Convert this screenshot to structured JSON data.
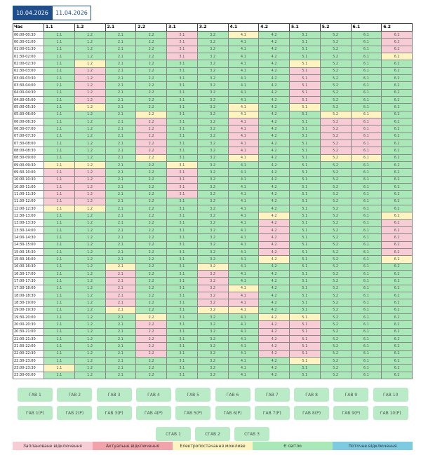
{
  "tabs": [
    "10.04.2026",
    "11.04.2026"
  ],
  "table": {
    "hour_header": "Час",
    "columns": [
      "1.1",
      "1.2",
      "2.1",
      "2.2",
      "3.1",
      "3.2",
      "4.1",
      "4.2",
      "5.1",
      "5.2",
      "6.1",
      "6.2"
    ],
    "rows": [
      "00:00-00:30",
      "00:30-01:00",
      "01:00-01:30",
      "01:30-02:00",
      "02:00-02:30",
      "02:30-03:00",
      "03:00-03:30",
      "03:30-04:00",
      "04:00-04:30",
      "04:30-05:00",
      "05:00-05:30",
      "05:30-06:00",
      "06:00-06:30",
      "06:30-07:00",
      "07:00-07:30",
      "07:30-08:00",
      "08:00-08:30",
      "08:30-09:00",
      "09:00-09:30",
      "09:30-10:00",
      "10:00-10:30",
      "10:30-11:00",
      "11:00-11:30",
      "11:30-12:00",
      "12:00-12:30",
      "12:30-13:00",
      "13:00-13:30",
      "13:30-14:00",
      "14:00-14:30",
      "14:30-15:00",
      "15:00-15:30",
      "15:30-16:00",
      "16:00-16:30",
      "16:30-17:00",
      "17:00-17:30",
      "17:30-18:00",
      "18:00-18:30",
      "18:30-19:00",
      "19:00-19:30",
      "19:30-20:00",
      "20:00-20:30",
      "20:30-21:00",
      "21:00-21:30",
      "21:30-22:00",
      "22:00-22:30",
      "22:30-23:00",
      "23:00-23:30",
      "23:30-00:00"
    ],
    "states": [
      "333303233330",
      "333303333330",
      "333303333330",
      "333303333332",
      "323333332333",
      "303333330333",
      "303333330333",
      "303333330333",
      "303333330333",
      "303333330333",
      "323333232333",
      "333233233223",
      "333033033003",
      "333033033003",
      "333033033003",
      "333033033003",
      "333033033003",
      "333233233223",
      "223323333333",
      "003303333333",
      "003303333333",
      "003303333333",
      "003303333333",
      "003333333333",
      "223333333333",
      "333333323332",
      "333333303330",
      "333333303330",
      "333333303330",
      "333333303330",
      "333333303330",
      "333333323332",
      "332332333333",
      "330330333333",
      "330330333333",
      "330330233333",
      "330330033333",
      "330330033333",
      "332332233333",
      "333233322333",
      "333033300333",
      "333033300333",
      "333033300333",
      "333033300333",
      "333033300333",
      "333333332333",
      "233333333333",
      "333333333333"
    ]
  },
  "buttons": {
    "row1": [
      "ГАВ 1",
      "ГАВ 2",
      "ГАВ 3",
      "ГАВ 4",
      "ГАВ 5",
      "ГАВ 6",
      "ГАВ 7",
      "ГАВ 8",
      "ГАВ 9",
      "ГАВ 10"
    ],
    "row2": [
      "ГАВ 1(Р)",
      "ГАВ 2(Р)",
      "ГАВ 3(Р)",
      "ГАВ 4(Р)",
      "ГАВ 5(Р)",
      "ГАВ 6(Р)",
      "ГАВ 7(Р)",
      "ГАВ 8(Р)",
      "ГАВ 9(Р)",
      "ГАВ 10(Р)"
    ],
    "row3": [
      "СГАВ 1",
      "СГАВ 2",
      "СГАВ 3"
    ]
  },
  "legend": [
    {
      "label": "Заплановане відключення",
      "color": "#f7ccd4"
    },
    {
      "label": "Актуальне відключення",
      "color": "#f2a3a9"
    },
    {
      "label": "Електропостачання можливе",
      "color": "#fdf4c0"
    },
    {
      "label": "Є світло",
      "color": "#a9e8b7"
    },
    {
      "label": "Поточне відключення",
      "color": "#7ccbe0"
    }
  ]
}
